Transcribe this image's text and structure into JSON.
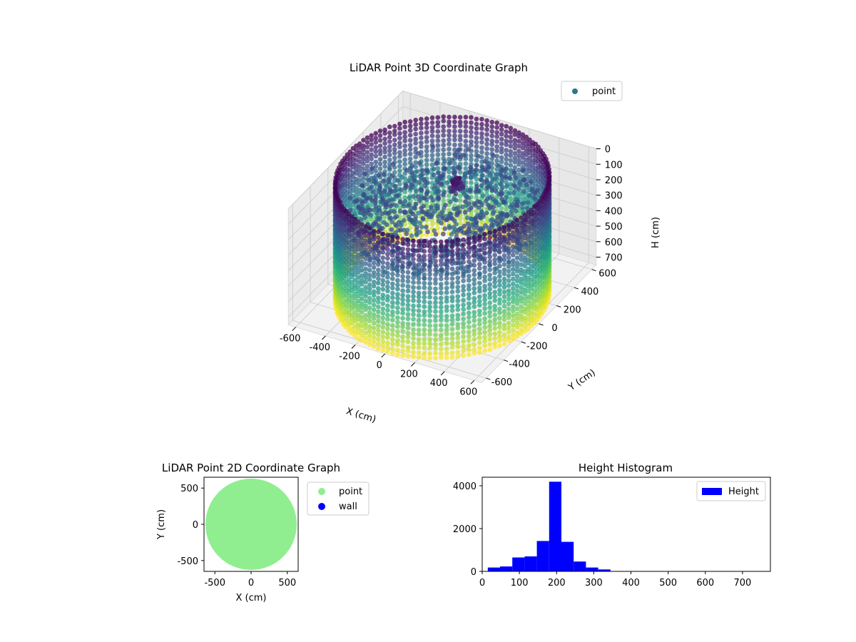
{
  "chart_data": [
    {
      "type": "scatter",
      "projection": "3d",
      "title": "LiDAR Point 3D Coordinate Graph",
      "xlabel": "X (cm)",
      "ylabel": "Y (cm)",
      "zlabel": "H (cm)",
      "x_ticks": [
        -600,
        -400,
        -200,
        0,
        200,
        400,
        600
      ],
      "y_ticks": [
        -600,
        -400,
        -200,
        0,
        200,
        400,
        600
      ],
      "z_ticks": [
        0,
        100,
        200,
        300,
        400,
        500,
        600,
        700
      ],
      "xlim": [
        -650,
        650
      ],
      "ylim": [
        -650,
        650
      ],
      "zlim": [
        0,
        750
      ],
      "z_inverted": true,
      "grid": true,
      "legend": {
        "position": "upper-right",
        "entries": [
          {
            "label": "point",
            "color": "#2a788e"
          }
        ]
      },
      "colormap": "viridis",
      "point_color_source": "height",
      "series": [
        {
          "name": "point",
          "structure": "cylindrical wall ring",
          "radius_cm": 620,
          "height_range_cm": [
            0,
            750
          ],
          "interior_points": "scattered at about 150–300 cm height"
        }
      ]
    },
    {
      "type": "scatter",
      "title": "LiDAR Point 2D Coordinate Graph",
      "xlabel": "X (cm)",
      "ylabel": "Y (cm)",
      "x_ticks": [
        -500,
        0,
        500
      ],
      "y_ticks": [
        500,
        0,
        -500
      ],
      "xlim": [
        -650,
        650
      ],
      "ylim": [
        -650,
        650
      ],
      "grid": false,
      "legend": {
        "position": "outside-right",
        "entries": [
          {
            "label": "point",
            "color": "#90ee90"
          },
          {
            "label": "wall",
            "color": "#0000ff"
          }
        ]
      },
      "series": [
        {
          "name": "point",
          "shape": "filled disc",
          "radius_cm": 630,
          "color": "#90ee90"
        }
      ]
    },
    {
      "type": "bar",
      "subtype": "histogram",
      "title": "Height Histogram",
      "xlabel": "",
      "ylabel": "",
      "x_ticks": [
        0,
        100,
        200,
        300,
        400,
        500,
        600,
        700
      ],
      "y_ticks": [
        0,
        2000,
        4000
      ],
      "xlim": [
        0,
        775
      ],
      "ylim": [
        0,
        4400
      ],
      "legend": {
        "position": "upper-right",
        "entries": [
          {
            "label": "Height",
            "color": "#0000ff"
          }
        ]
      },
      "bin_edges": [
        15,
        48,
        81,
        114,
        147,
        180,
        213,
        246,
        279,
        312,
        345,
        378,
        411,
        444,
        477,
        510,
        543,
        576,
        609,
        642,
        675,
        708,
        741,
        774
      ],
      "counts": [
        180,
        230,
        650,
        700,
        1420,
        4190,
        1380,
        460,
        180,
        90,
        15,
        8,
        6,
        5,
        5,
        5,
        5,
        5,
        5,
        5,
        5,
        5,
        5
      ],
      "color": "#0000ff"
    }
  ]
}
